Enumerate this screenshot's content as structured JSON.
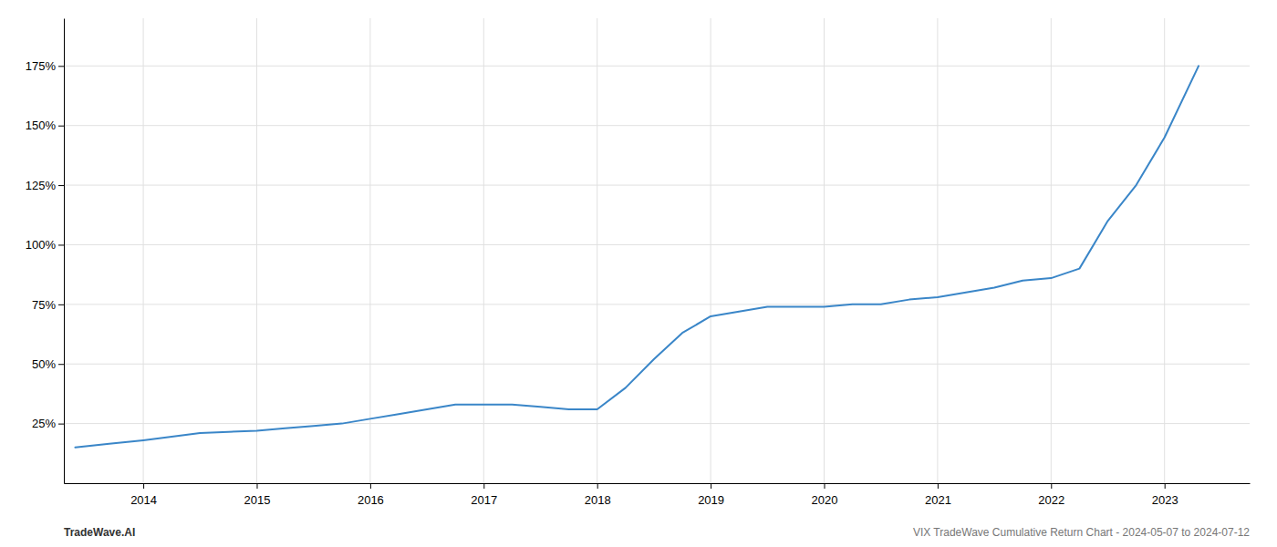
{
  "chart_data": {
    "type": "line",
    "x": [
      2013.4,
      2013.7,
      2014.0,
      2014.25,
      2014.5,
      2014.75,
      2015.0,
      2015.25,
      2015.5,
      2015.75,
      2016.0,
      2016.25,
      2016.5,
      2016.75,
      2017.0,
      2017.25,
      2017.5,
      2017.75,
      2018.0,
      2018.25,
      2018.5,
      2018.75,
      2019.0,
      2019.25,
      2019.5,
      2019.75,
      2020.0,
      2020.25,
      2020.5,
      2020.75,
      2021.0,
      2021.25,
      2021.5,
      2021.75,
      2022.0,
      2022.25,
      2022.5,
      2022.75,
      2023.0,
      2023.3
    ],
    "values": [
      15,
      16.5,
      18,
      19.5,
      21,
      21.5,
      22,
      23,
      24,
      25,
      27,
      29,
      31,
      33,
      33,
      33,
      32,
      31,
      31,
      40,
      52,
      63,
      70,
      72,
      74,
      74,
      74,
      75,
      75,
      77,
      78,
      80,
      82,
      85,
      86,
      90,
      110,
      125,
      145,
      175
    ],
    "color": "#3a86c8",
    "xlim": [
      2013.3,
      2023.75
    ],
    "xticks": [
      2014,
      2015,
      2016,
      2017,
      2018,
      2019,
      2020,
      2021,
      2022,
      2023
    ],
    "ylim": [
      0,
      195
    ],
    "yticks": [
      {
        "value": 25,
        "label": "25%"
      },
      {
        "value": 50,
        "label": "50%"
      },
      {
        "value": 75,
        "label": "75%"
      },
      {
        "value": 100,
        "label": "100%"
      },
      {
        "value": 125,
        "label": "125%"
      },
      {
        "value": 150,
        "label": "150%"
      },
      {
        "value": 175,
        "label": "175%"
      }
    ],
    "grid": true,
    "annotations": [
      "TradeWave.AI",
      "VIX TradeWave Cumulative Return Chart - 2024-05-07 to 2024-07-12"
    ]
  }
}
